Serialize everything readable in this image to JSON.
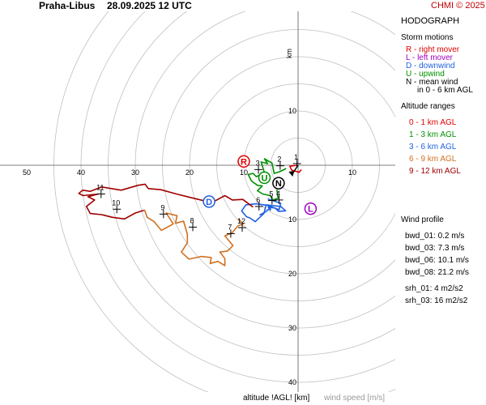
{
  "header": {
    "station": "Praha-Libus",
    "datetime": "28.09.2025 12 UTC",
    "copyright": "CHMI © 2025"
  },
  "panel": {
    "title": "HODOGRAPH",
    "storm_motions": {
      "heading": "Storm motions",
      "items": [
        {
          "text": "R - right mover",
          "color": "#e00000"
        },
        {
          "text": "L - left mover",
          "color": "#a000c0"
        },
        {
          "text": "D - downwind",
          "color": "#2060e0"
        },
        {
          "text": "U - upwind",
          "color": "#009000"
        },
        {
          "text": "N - mean wind",
          "color": "#000000"
        },
        {
          "text": "in 0 - 6 km AGL",
          "color": "#000000"
        }
      ]
    },
    "altitude_ranges": {
      "heading": "Altitude ranges",
      "items": [
        {
          "text": "0 - 1 km AGL",
          "color": "#e00000"
        },
        {
          "text": "1 - 3 km AGL",
          "color": "#009000"
        },
        {
          "text": "3 - 6 km AGL",
          "color": "#2060e0"
        },
        {
          "text": "6 - 9 km AGL",
          "color": "#d07020"
        },
        {
          "text": "9 - 12 km AGL",
          "color": "#a00000"
        }
      ]
    },
    "wind_profile": {
      "heading": "Wind profile",
      "items": [
        "bwd_01: 0.2 m/s",
        "bwd_03: 7.3 m/s",
        "bwd_06: 10.1 m/s",
        "bwd_08: 21.2 m/s",
        "srh_01: 4 m2/s2",
        "srh_03: 16 m2/s2"
      ]
    }
  },
  "footer": {
    "altitude_label": "altitude !AGL! [km]",
    "speed_label": "wind speed [m/s]"
  },
  "chart_data": {
    "type": "hodograph",
    "ring_step": 5,
    "ring_count": 9,
    "x_tick_labels": [
      "50",
      "40",
      "30",
      "20",
      "10",
      "10"
    ],
    "x_tick_values": [
      -50,
      -40,
      -30,
      -20,
      -10,
      10
    ],
    "y_tick_labels": [
      "10",
      "10",
      "20",
      "30",
      "40"
    ],
    "y_tick_values": [
      10,
      -10,
      -20,
      -30,
      -40
    ],
    "grid": true,
    "segments": [
      {
        "range": "0 - 1 km",
        "color": "#e00000",
        "points": [
          [
            -0.2,
            0
          ],
          [
            -1.5,
            -0.2
          ],
          [
            -1.2,
            -0.9
          ],
          [
            0.2,
            -1.3
          ],
          [
            0.6,
            -0.8
          ]
        ]
      },
      {
        "range": "1 - 3 km",
        "color": "#009000",
        "points": [
          [
            -2.2,
            -0.6
          ],
          [
            -3.4,
            -1.2
          ],
          [
            -4.4,
            -1.5
          ],
          [
            -4.8,
            0.4
          ],
          [
            -6.2,
            1.2
          ],
          [
            -5.6,
            0.3
          ],
          [
            -6.8,
            0.6
          ],
          [
            -6.2,
            -1.4
          ],
          [
            -7.7,
            -2.1
          ],
          [
            -8.3,
            -1.5
          ],
          [
            -9.2,
            -1.7
          ],
          [
            -8.6,
            -2.9
          ],
          [
            -7.5,
            -3.7
          ],
          [
            -6.6,
            -3.8
          ],
          [
            -7.5,
            -4.7
          ],
          [
            -6.5,
            -5.3
          ],
          [
            -5.1,
            -5.6
          ],
          [
            -4.7,
            -6.4
          ],
          [
            -3.7,
            -6.1
          ],
          [
            -3.9,
            -4.5
          ]
        ]
      },
      {
        "range": "3 - 6 km",
        "color": "#2060e0",
        "points": [
          [
            -5.6,
            -6.2
          ],
          [
            -4.4,
            -6.6
          ],
          [
            -3.2,
            -7.0
          ],
          [
            -3.5,
            -8.2
          ],
          [
            -5.6,
            -7.4
          ],
          [
            -7.7,
            -7.1
          ],
          [
            -9.6,
            -7.3
          ],
          [
            -10.4,
            -8.4
          ],
          [
            -9.5,
            -9.5
          ],
          [
            -8.9,
            -9.7
          ],
          [
            -7.9,
            -10.4
          ],
          [
            -6.3,
            -8.9
          ],
          [
            -5.9,
            -7.3
          ],
          [
            -3.2,
            -7.6
          ],
          [
            -2.3,
            -8.4
          ],
          [
            -3.6,
            -8.5
          ],
          [
            -4.2,
            -7.9
          ],
          [
            -5.5,
            -7.7
          ],
          [
            -5.1,
            -8.3
          ],
          [
            -5.1,
            -7.8
          ],
          [
            -6.0,
            -8.6
          ],
          [
            -7.1,
            -9.2
          ]
        ]
      },
      {
        "range": "6 - 9 km",
        "color": "#d07020",
        "points": [
          [
            -11.0,
            -9.9
          ],
          [
            -10.1,
            -10.8
          ],
          [
            -11.1,
            -11.2
          ],
          [
            -12.2,
            -12.5
          ],
          [
            -13.5,
            -13.0
          ],
          [
            -12.0,
            -14.8
          ],
          [
            -13.0,
            -15.8
          ],
          [
            -14.4,
            -16.0
          ],
          [
            -13.5,
            -17.2
          ],
          [
            -13.5,
            -18.5
          ],
          [
            -14.8,
            -17.7
          ],
          [
            -16.2,
            -18.1
          ],
          [
            -16.0,
            -17.0
          ],
          [
            -17.8,
            -16.8
          ],
          [
            -20.1,
            -17.3
          ],
          [
            -21.5,
            -16.0
          ],
          [
            -20.4,
            -14.3
          ],
          [
            -20.4,
            -12.7
          ],
          [
            -21.1,
            -10.3
          ],
          [
            -22.6,
            -10.7
          ],
          [
            -22.3,
            -9.3
          ],
          [
            -24.3,
            -8.8
          ],
          [
            -23.0,
            -10.8
          ],
          [
            -25.2,
            -12.0
          ],
          [
            -26.5,
            -10.4
          ],
          [
            -27.8,
            -9.6
          ],
          [
            -28.3,
            -8.2
          ]
        ]
      },
      {
        "range": "9 - 12 km",
        "color": "#a00000",
        "points": [
          [
            -28.4,
            -8.3
          ],
          [
            -30.0,
            -8.8
          ],
          [
            -32.0,
            -9.9
          ],
          [
            -34.2,
            -9.6
          ],
          [
            -36.2,
            -9.1
          ],
          [
            -38.3,
            -8.9
          ],
          [
            -39.0,
            -7.6
          ],
          [
            -37.5,
            -6.4
          ],
          [
            -38.7,
            -5.8
          ],
          [
            -36.8,
            -5.3
          ],
          [
            -39.6,
            -5.6
          ],
          [
            -40.4,
            -5.2
          ],
          [
            -39.7,
            -4.6
          ],
          [
            -38.3,
            -4.8
          ],
          [
            -36.2,
            -4.0
          ],
          [
            -32.6,
            -4.6
          ],
          [
            -29.5,
            -3.7
          ],
          [
            -28.2,
            -3.5
          ],
          [
            -27.6,
            -4.3
          ],
          [
            -25.3,
            -4.5
          ],
          [
            -22.4,
            -5.3
          ],
          [
            -19.6,
            -6.0
          ],
          [
            -15.9,
            -6.9
          ],
          [
            -13.5,
            -5.6
          ],
          [
            -12.1,
            -6.4
          ],
          [
            -10.2,
            -6.3
          ],
          [
            -9.0,
            -7.2
          ],
          [
            -8.3,
            -7.7
          ]
        ]
      }
    ],
    "altitude_marks": [
      {
        "label": "1",
        "x": -0.2,
        "y": 0.3
      },
      {
        "label": "2",
        "x": -3.3,
        "y": -0.1
      },
      {
        "label": "3",
        "x": -7.3,
        "y": -0.8
      },
      {
        "label": "4",
        "x": -3.5,
        "y": -6.4
      },
      {
        "label": "5",
        "x": -4.8,
        "y": -6.5
      },
      {
        "label": "6",
        "x": -7.2,
        "y": -7.6
      },
      {
        "label": "7",
        "x": -12.4,
        "y": -12.6
      },
      {
        "label": "8",
        "x": -19.4,
        "y": -11.4
      },
      {
        "label": "9",
        "x": -24.8,
        "y": -9.0
      },
      {
        "label": "10",
        "x": -33.4,
        "y": -8.1
      },
      {
        "label": "11",
        "x": -36.3,
        "y": -5.3
      },
      {
        "label": "12",
        "x": -10.3,
        "y": -11.5
      }
    ],
    "storm_markers": [
      {
        "label": "R",
        "x": -10.0,
        "y": 0.7,
        "color": "#e00000"
      },
      {
        "label": "L",
        "x": 2.3,
        "y": -8.0,
        "color": "#a000c0"
      },
      {
        "label": "D",
        "x": -16.4,
        "y": -6.7,
        "color": "#2060e0"
      },
      {
        "label": "U",
        "x": -6.2,
        "y": -2.3,
        "color": "#009000"
      },
      {
        "label": "N",
        "x": -3.6,
        "y": -3.3,
        "color": "#000000"
      }
    ],
    "direction_arrow": {
      "x": -1.0,
      "y": -1.5,
      "color": "#000000"
    }
  }
}
